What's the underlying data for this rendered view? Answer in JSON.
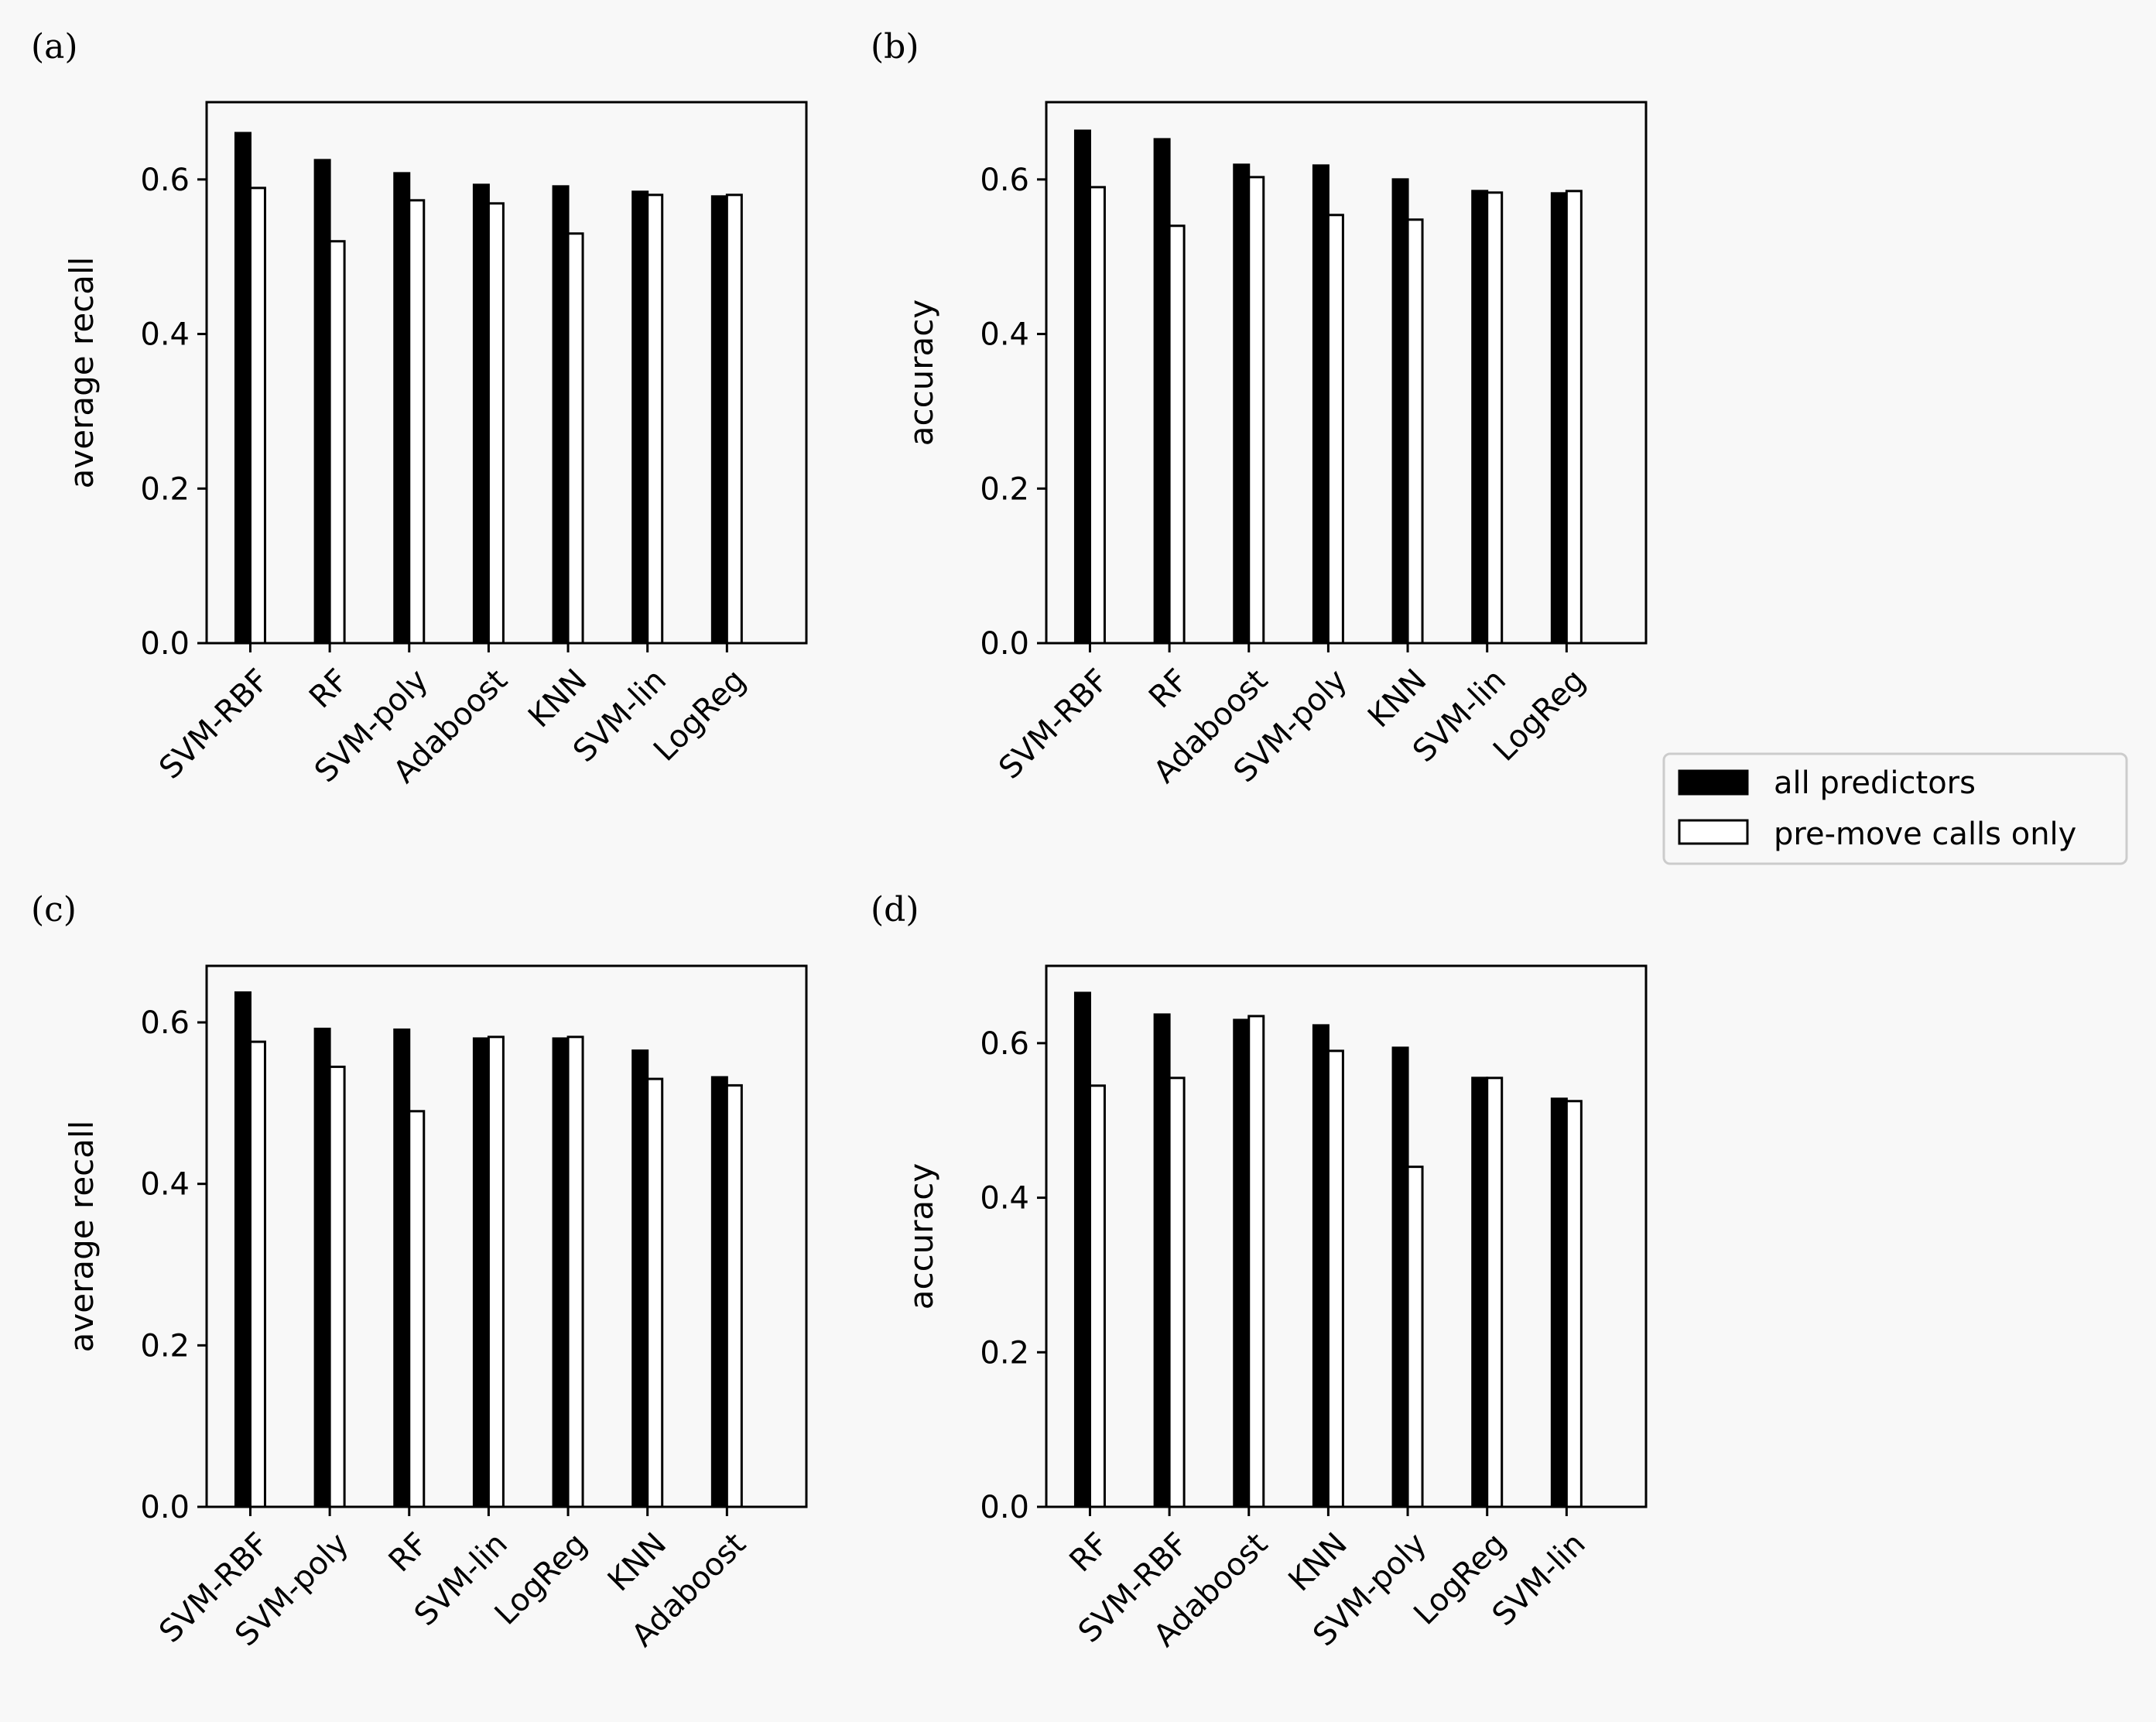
{
  "legend": {
    "entries": [
      {
        "label": "all predictors",
        "color": "#000000"
      },
      {
        "label": "pre-move calls only",
        "color": "#ffffff"
      }
    ]
  },
  "chart_data": [
    {
      "panel": "(a)",
      "type": "bar",
      "ylabel": "average recall",
      "ylim": [
        0,
        0.7
      ],
      "yticks": [
        "0.0",
        "0.2",
        "0.4",
        "0.6"
      ],
      "categories": [
        "SVM-RBF",
        "RF",
        "SVM-poly",
        "Adaboost",
        "KNN",
        "SVM-lin",
        "LogReg"
      ],
      "series": [
        {
          "name": "all predictors",
          "values": [
            0.66,
            0.625,
            0.608,
            0.593,
            0.591,
            0.584,
            0.578
          ]
        },
        {
          "name": "pre-move calls only",
          "values": [
            0.589,
            0.52,
            0.573,
            0.569,
            0.53,
            0.58,
            0.58
          ]
        }
      ]
    },
    {
      "panel": "(b)",
      "type": "bar",
      "ylabel": "accuracy",
      "ylim": [
        0,
        0.7
      ],
      "yticks": [
        "0.0",
        "0.2",
        "0.4",
        "0.6"
      ],
      "categories": [
        "SVM-RBF",
        "RF",
        "Adaboost",
        "SVM-poly",
        "KNN",
        "SVM-lin",
        "LogReg"
      ],
      "series": [
        {
          "name": "all predictors",
          "values": [
            0.663,
            0.652,
            0.619,
            0.618,
            0.6,
            0.585,
            0.582
          ]
        },
        {
          "name": "pre-move calls only",
          "values": [
            0.59,
            0.54,
            0.603,
            0.554,
            0.548,
            0.583,
            0.585
          ]
        }
      ]
    },
    {
      "panel": "(c)",
      "type": "bar",
      "ylabel": "average recall",
      "ylim": [
        0,
        0.67
      ],
      "yticks": [
        "0.0",
        "0.2",
        "0.4",
        "0.6"
      ],
      "categories": [
        "SVM-RBF",
        "SVM-poly",
        "RF",
        "SVM-lin",
        "LogReg",
        "KNN",
        "Adaboost"
      ],
      "series": [
        {
          "name": "all predictors",
          "values": [
            0.637,
            0.592,
            0.591,
            0.58,
            0.58,
            0.565,
            0.532
          ]
        },
        {
          "name": "pre-move calls only",
          "values": [
            0.576,
            0.545,
            0.49,
            0.582,
            0.582,
            0.53,
            0.522
          ]
        }
      ]
    },
    {
      "panel": "(d)",
      "type": "bar",
      "ylabel": "accuracy",
      "ylim": [
        0,
        0.7
      ],
      "yticks": [
        "0.0",
        "0.2",
        "0.4",
        "0.6"
      ],
      "categories": [
        "RF",
        "SVM-RBF",
        "Adaboost",
        "KNN",
        "SVM-poly",
        "LogReg",
        "SVM-lin"
      ],
      "series": [
        {
          "name": "all predictors",
          "values": [
            0.665,
            0.637,
            0.63,
            0.623,
            0.594,
            0.555,
            0.528
          ]
        },
        {
          "name": "pre-move calls only",
          "values": [
            0.545,
            0.555,
            0.635,
            0.59,
            0.44,
            0.555,
            0.525
          ]
        }
      ]
    }
  ]
}
